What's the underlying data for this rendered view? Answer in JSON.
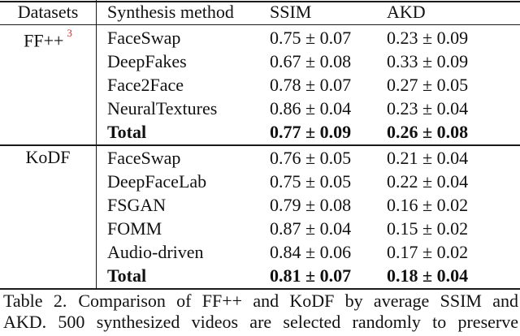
{
  "table": {
    "headers": [
      "Datasets",
      "Synthesis method",
      "SSIM",
      "AKD"
    ],
    "groups": [
      {
        "dataset": "FF++",
        "footnote": "3",
        "rows": [
          {
            "method": "FaceSwap",
            "ssim": "0.75 ± 0.07",
            "akd": "0.23 ± 0.09"
          },
          {
            "method": "DeepFakes",
            "ssim": "0.67 ± 0.08",
            "akd": "0.33 ± 0.09"
          },
          {
            "method": "Face2Face",
            "ssim": "0.78 ± 0.07",
            "akd": "0.27 ± 0.05"
          },
          {
            "method": "NeuralTextures",
            "ssim": "0.86 ± 0.04",
            "akd": "0.23 ± 0.04"
          }
        ],
        "total": {
          "method": "Total",
          "ssim": "0.77 ± 0.09",
          "akd": "0.26 ± 0.08"
        }
      },
      {
        "dataset": "KoDF",
        "rows": [
          {
            "method": "FaceSwap",
            "ssim": "0.76 ± 0.05",
            "akd": "0.21 ± 0.04"
          },
          {
            "method": "DeepFaceLab",
            "ssim": "0.75 ± 0.05",
            "akd": "0.22 ± 0.04"
          },
          {
            "method": "FSGAN",
            "ssim": "0.79 ± 0.08",
            "akd": "0.16 ± 0.02"
          },
          {
            "method": "FOMM",
            "ssim": "0.87 ± 0.04",
            "akd": "0.15 ± 0.02"
          },
          {
            "method": "Audio-driven",
            "ssim": "0.84 ± 0.06",
            "akd": "0.17 ± 0.02"
          }
        ],
        "total": {
          "method": "Total",
          "ssim": "0.81 ± 0.07",
          "akd": "0.18 ± 0.04"
        }
      }
    ]
  },
  "caption": {
    "label": "Table 2.",
    "line1": "Comparison of FF++ and KoDF by average SSIM and",
    "line2": "AKD. 500 synthesized videos are selected randomly to preserve"
  }
}
